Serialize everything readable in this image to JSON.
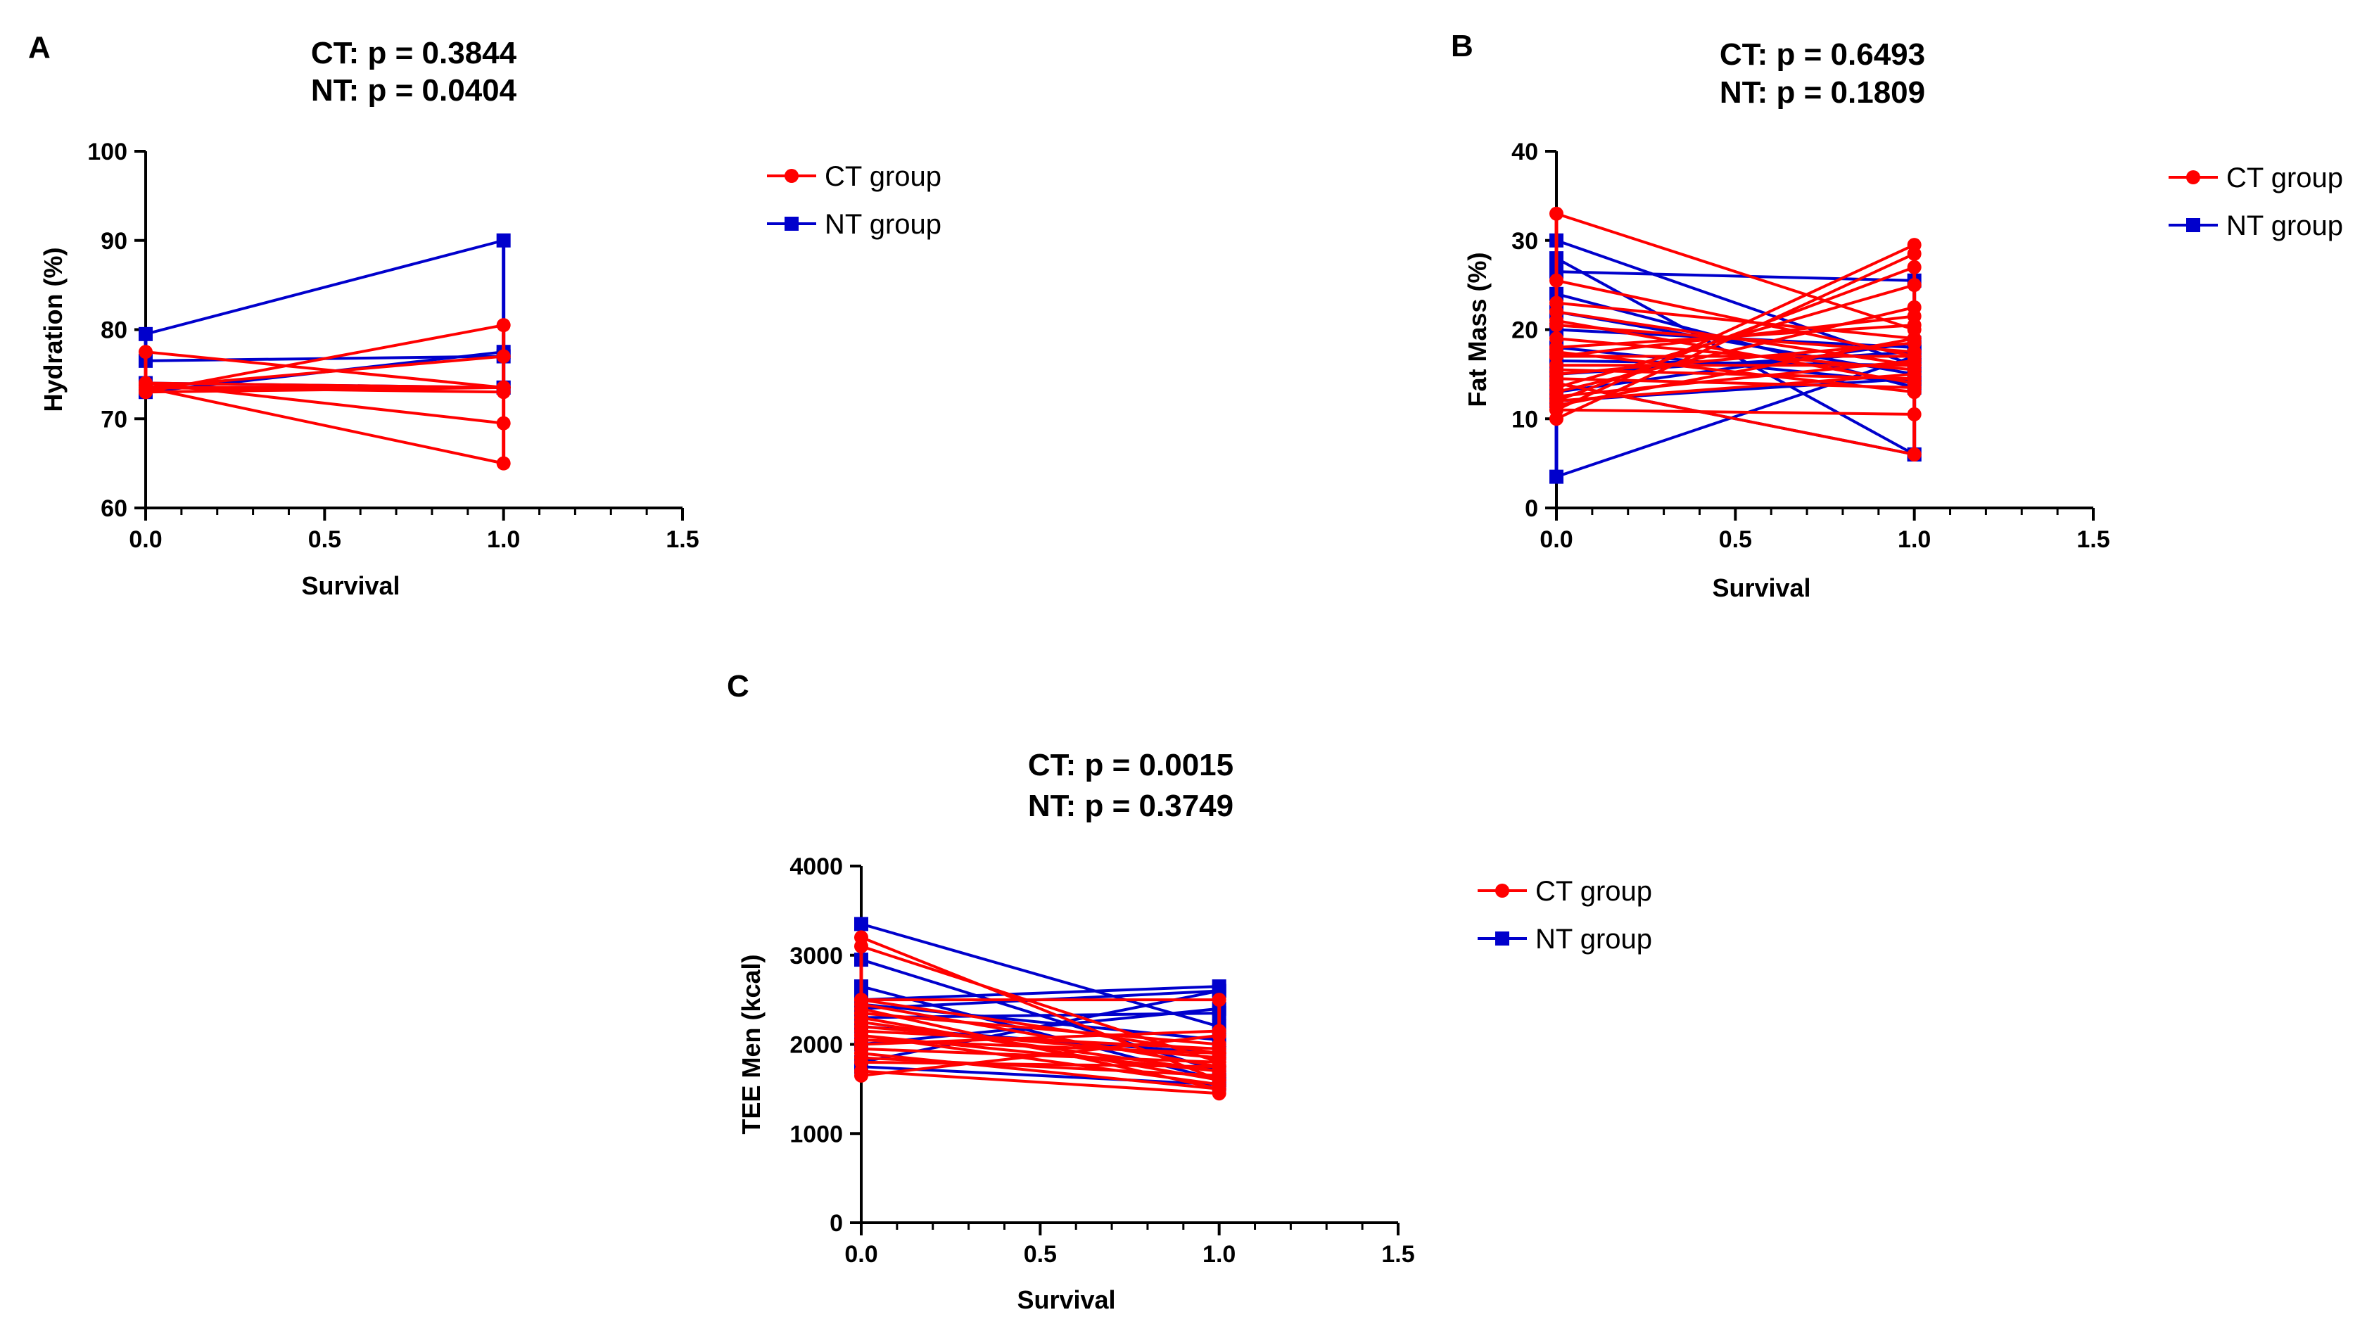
{
  "colors": {
    "ct": "#ff0000",
    "nt": "#0000cc",
    "axis": "#000000"
  },
  "chart_data": [
    {
      "type": "line",
      "panel": "A",
      "title_lines": [
        "CT: p = 0.3844",
        "NT: p = 0.0404"
      ],
      "xlabel": "Survival",
      "ylabel": "Hydration (%)",
      "xlim": [
        0,
        1.5
      ],
      "ylim": [
        60,
        100
      ],
      "xticks": [
        "0.0",
        "0.5",
        "1.0",
        "1.5"
      ],
      "yticks": [
        "60",
        "70",
        "80",
        "90",
        "100"
      ],
      "legend": [
        "CT group",
        "NT group"
      ],
      "series": [
        {
          "name": "NT group",
          "pairs": [
            [
              79.5,
              90.0
            ],
            [
              73.0,
              77.5
            ],
            [
              76.5,
              77.0
            ],
            [
              74.0,
              73.5
            ],
            [
              73.5,
              73.5
            ]
          ]
        },
        {
          "name": "CT group",
          "pairs": [
            [
              77.5,
              73.5
            ],
            [
              73.0,
              80.5
            ],
            [
              73.5,
              77.0
            ],
            [
              74.0,
              73.5
            ],
            [
              73.5,
              73.5
            ],
            [
              73.5,
              73.5
            ],
            [
              73.5,
              73.5
            ],
            [
              73.5,
              73.0
            ],
            [
              73.0,
              73.5
            ],
            [
              74.0,
              69.5
            ],
            [
              73.5,
              65.0
            ]
          ]
        }
      ]
    },
    {
      "type": "line",
      "panel": "B",
      "title_lines": [
        "CT: p = 0.6493",
        "NT: p = 0.1809"
      ],
      "xlabel": "Survival",
      "ylabel": "Fat Mass (%)",
      "xlim": [
        0,
        1.5
      ],
      "ylim": [
        0,
        40
      ],
      "xticks": [
        "0.0",
        "0.5",
        "1.0",
        "1.5"
      ],
      "yticks": [
        "0",
        "10",
        "20",
        "30",
        "40"
      ],
      "legend": [
        "CT group",
        "NT group"
      ],
      "series": [
        {
          "name": "NT group",
          "pairs": [
            [
              3.5,
              17.0
            ],
            [
              30.0,
              16.0
            ],
            [
              28.0,
              6.0
            ],
            [
              26.5,
              25.5
            ],
            [
              24.0,
              13.5
            ],
            [
              22.0,
              15.0
            ],
            [
              20.0,
              18.0
            ],
            [
              18.0,
              14.0
            ],
            [
              16.5,
              16.0
            ],
            [
              15.0,
              17.5
            ],
            [
              14.0,
              6.0
            ],
            [
              13.0,
              18.5
            ],
            [
              12.0,
              14.5
            ]
          ]
        },
        {
          "name": "CT group",
          "pairs": [
            [
              33.0,
              20.0
            ],
            [
              25.5,
              17.0
            ],
            [
              23.0,
              19.0
            ],
            [
              22.0,
              16.0
            ],
            [
              21.0,
              14.0
            ],
            [
              20.5,
              17.5
            ],
            [
              19.0,
              15.5
            ],
            [
              18.0,
              20.5
            ],
            [
              17.5,
              13.0
            ],
            [
              17.0,
              21.5
            ],
            [
              16.0,
              16.0
            ],
            [
              15.5,
              14.5
            ],
            [
              15.0,
              18.5
            ],
            [
              14.5,
              13.5
            ],
            [
              13.5,
              25.0
            ],
            [
              12.5,
              16.5
            ],
            [
              12.0,
              27.0
            ],
            [
              11.5,
              19.0
            ],
            [
              11.0,
              10.5
            ],
            [
              10.0,
              28.5
            ],
            [
              11.0,
              29.5
            ],
            [
              12.0,
              15.0
            ],
            [
              13.0,
              22.5
            ],
            [
              17.0,
              17.0
            ],
            [
              14.0,
              6.0
            ]
          ]
        }
      ]
    },
    {
      "type": "line",
      "panel": "C",
      "title_lines": [
        "CT: p = 0.0015",
        "NT: p = 0.3749"
      ],
      "xlabel": "Survival",
      "ylabel": "TEE Men (kcal)",
      "xlim": [
        0,
        1.5
      ],
      "ylim": [
        0,
        4000
      ],
      "xticks": [
        "0.0",
        "0.5",
        "1.0",
        "1.5"
      ],
      "yticks": [
        "0",
        "1000",
        "2000",
        "3000",
        "4000"
      ],
      "legend": [
        "CT group",
        "NT group"
      ],
      "series": [
        {
          "name": "NT group",
          "pairs": [
            [
              3350,
              2200
            ],
            [
              2950,
              1700
            ],
            [
              2500,
              2650
            ],
            [
              2400,
              2600
            ],
            [
              2450,
              2050
            ],
            [
              2300,
              2350
            ],
            [
              2200,
              1900
            ],
            [
              1800,
              2600
            ],
            [
              1750,
              1550
            ],
            [
              2000,
              2400
            ],
            [
              2650,
              1600
            ]
          ]
        },
        {
          "name": "CT group",
          "pairs": [
            [
              3200,
              1600
            ],
            [
              3100,
              1800
            ],
            [
              2500,
              1900
            ],
            [
              2450,
              1750
            ],
            [
              2400,
              1500
            ],
            [
              2350,
              2000
            ],
            [
              2300,
              1600
            ],
            [
              2250,
              1700
            ],
            [
              2200,
              1850
            ],
            [
              2150,
              1950
            ],
            [
              2100,
              1550
            ],
            [
              2050,
              1900
            ],
            [
              2000,
              2150
            ],
            [
              1950,
              1800
            ],
            [
              1900,
              1500
            ],
            [
              1850,
              1650
            ],
            [
              1800,
              1750
            ],
            [
              1650,
              2100
            ],
            [
              1700,
              1450
            ],
            [
              2500,
              2500
            ],
            [
              2100,
              1700
            ]
          ]
        }
      ]
    }
  ]
}
